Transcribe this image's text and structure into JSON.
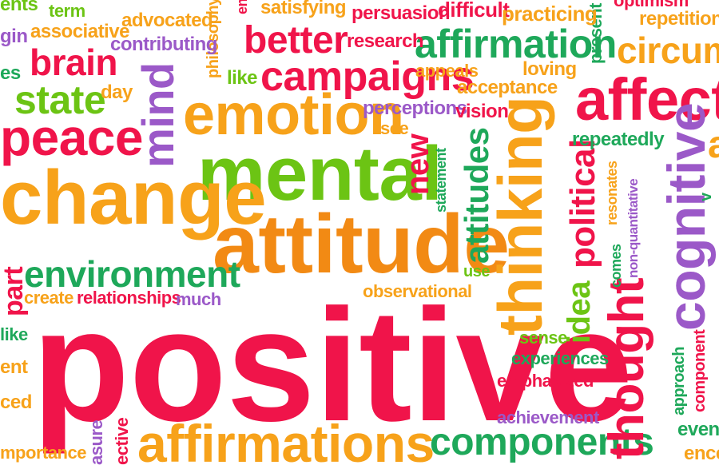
{
  "palette": {
    "red": "#f0144a",
    "orange": "#f7a21a",
    "deep_orange": "#f28a14",
    "green": "#1ea85a",
    "lime": "#6cc414",
    "purple": "#9b59c8",
    "pink": "#e8244f"
  },
  "words": [
    {
      "id": "w-positive",
      "text": "positive",
      "color": "red"
    },
    {
      "id": "w-attitude",
      "text": "attitude",
      "color": "deep_orange"
    },
    {
      "id": "w-mental",
      "text": "mental",
      "color": "lime"
    },
    {
      "id": "w-emotion",
      "text": "emotion",
      "color": "orange"
    },
    {
      "id": "w-change",
      "text": "change",
      "color": "orange"
    },
    {
      "id": "w-peace",
      "text": "peace",
      "color": "red"
    },
    {
      "id": "w-campaigns",
      "text": "campaigns",
      "color": "red"
    },
    {
      "id": "w-affirmation",
      "text": "affirmation",
      "color": "green"
    },
    {
      "id": "w-affirmations",
      "text": "affirmations",
      "color": "orange"
    },
    {
      "id": "w-components",
      "text": "components",
      "color": "green"
    },
    {
      "id": "w-environment",
      "text": "environment",
      "color": "green"
    },
    {
      "id": "w-better",
      "text": "better",
      "color": "red"
    },
    {
      "id": "w-brain",
      "text": "brain",
      "color": "red"
    },
    {
      "id": "w-state",
      "text": "state",
      "color": "lime"
    },
    {
      "id": "w-affecti",
      "text": "affecti",
      "color": "red"
    },
    {
      "id": "w-circum",
      "text": "circum",
      "color": "orange"
    },
    {
      "id": "w-thinking",
      "text": "thinking",
      "color": "orange"
    },
    {
      "id": "w-cognitive",
      "text": "cognitive",
      "color": "purple"
    },
    {
      "id": "w-thought",
      "text": "thought",
      "color": "red"
    },
    {
      "id": "w-mind",
      "text": "mind",
      "color": "purple"
    },
    {
      "id": "w-new",
      "text": "new",
      "color": "red"
    },
    {
      "id": "w-attitudes",
      "text": "attitudes",
      "color": "green"
    },
    {
      "id": "w-political",
      "text": "political",
      "color": "red"
    },
    {
      "id": "w-idea",
      "text": "idea",
      "color": "lime"
    },
    {
      "id": "w-term",
      "text": "term",
      "color": "lime"
    },
    {
      "id": "w-advocated",
      "text": "advocated",
      "color": "orange"
    },
    {
      "id": "w-satisfying",
      "text": "satisfying",
      "color": "orange"
    },
    {
      "id": "w-persuasion",
      "text": "persuasion",
      "color": "red"
    },
    {
      "id": "w-difficult",
      "text": "difficult",
      "color": "red"
    },
    {
      "id": "w-practicing",
      "text": "practicing",
      "color": "orange"
    },
    {
      "id": "w-optimism",
      "text": "optimism",
      "color": "red"
    },
    {
      "id": "w-repetition",
      "text": "repetition",
      "color": "orange"
    },
    {
      "id": "w-associative",
      "text": "associative",
      "color": "orange"
    },
    {
      "id": "w-contributing",
      "text": "contributing",
      "color": "purple"
    },
    {
      "id": "w-research",
      "text": "research",
      "color": "red"
    },
    {
      "id": "w-gin",
      "text": "gin",
      "color": "purple"
    },
    {
      "id": "w-es",
      "text": "es",
      "color": "green"
    },
    {
      "id": "w-ents",
      "text": "ents",
      "color": "lime"
    },
    {
      "id": "w-like",
      "text": "like",
      "color": "lime"
    },
    {
      "id": "w-appeals",
      "text": "appeals",
      "color": "orange"
    },
    {
      "id": "w-loving",
      "text": "loving",
      "color": "orange"
    },
    {
      "id": "w-acceptance",
      "text": "acceptance",
      "color": "orange"
    },
    {
      "id": "w-day",
      "text": "day",
      "color": "orange"
    },
    {
      "id": "w-perceptions",
      "text": "perceptions",
      "color": "purple"
    },
    {
      "id": "w-vision",
      "text": "vision",
      "color": "red"
    },
    {
      "id": "w-see",
      "text": "see",
      "color": "orange"
    },
    {
      "id": "w-repeatedly",
      "text": "repeatedly",
      "color": "green"
    },
    {
      "id": "w-a",
      "text": "a",
      "color": "orange"
    },
    {
      "id": "w-create",
      "text": "create",
      "color": "orange"
    },
    {
      "id": "w-relationships",
      "text": "relationships",
      "color": "red"
    },
    {
      "id": "w-much",
      "text": "much",
      "color": "purple"
    },
    {
      "id": "w-observational",
      "text": "observational",
      "color": "orange"
    },
    {
      "id": "w-use",
      "text": "use",
      "color": "lime"
    },
    {
      "id": "w-sense",
      "text": "sense",
      "color": "lime"
    },
    {
      "id": "w-experiences",
      "text": "experiences",
      "color": "green"
    },
    {
      "id": "w-emphasized",
      "text": "emphasized",
      "color": "red"
    },
    {
      "id": "w-achievement",
      "text": "achievement",
      "color": "purple"
    },
    {
      "id": "w-like2",
      "text": "like",
      "color": "green"
    },
    {
      "id": "w-ent",
      "text": "ent",
      "color": "orange"
    },
    {
      "id": "w-ced",
      "text": "ced",
      "color": "orange"
    },
    {
      "id": "w-mportance",
      "text": "mportance",
      "color": "orange"
    },
    {
      "id": "w-event",
      "text": "event",
      "color": "green"
    },
    {
      "id": "w-ence",
      "text": "ence",
      "color": "orange"
    },
    {
      "id": "w-philosophy",
      "text": "philosophy",
      "color": "orange"
    },
    {
      "id": "w-en",
      "text": "en",
      "color": "red"
    },
    {
      "id": "w-present",
      "text": "present",
      "color": "green"
    },
    {
      "id": "w-statement",
      "text": "statement",
      "color": "green"
    },
    {
      "id": "w-resonates",
      "text": "resonates",
      "color": "orange"
    },
    {
      "id": "w-comes",
      "text": "comes",
      "color": "green"
    },
    {
      "id": "w-nonquant",
      "text": "non-quantitative",
      "color": "purple"
    },
    {
      "id": "w-part",
      "text": "part",
      "color": "red"
    },
    {
      "id": "w-asure",
      "text": "asure",
      "color": "purple"
    },
    {
      "id": "w-ective",
      "text": "ective",
      "color": "red"
    },
    {
      "id": "w-approach",
      "text": "approach",
      "color": "green"
    },
    {
      "id": "w-component",
      "text": "component",
      "color": "red"
    },
    {
      "id": "w-verb",
      "text": "v",
      "color": "green"
    }
  ]
}
